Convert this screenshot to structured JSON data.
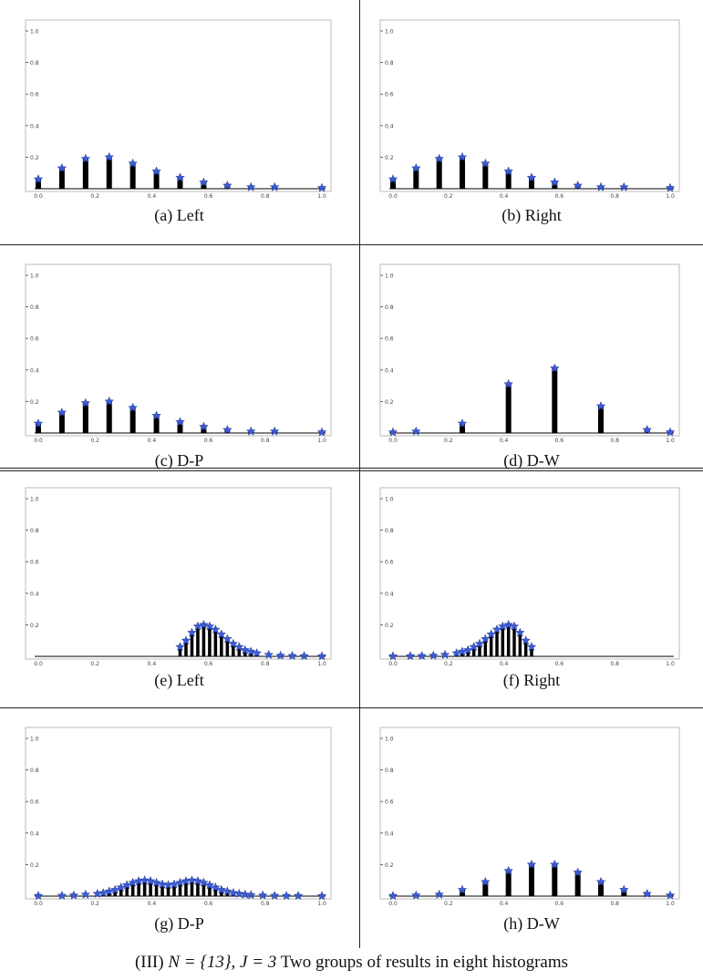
{
  "figure": {
    "caption_prefix": "(III)",
    "caption_math": "N = {13}, J = 3",
    "caption_text": "Two groups of results in eight histograms"
  },
  "style": {
    "bar_color": "#000000",
    "marker_color": "#3a5bd9",
    "frame_color": "#bbbbbb",
    "tick_color": "#444444"
  },
  "chart_data": [
    {
      "type": "bar",
      "caption": "(a) Left",
      "title": "",
      "xlabel": "",
      "ylabel": "",
      "xlim": [
        0,
        1
      ],
      "ylim": [
        0,
        1
      ],
      "xticks": [
        "0.0",
        "0.2",
        "0.4",
        "0.6",
        "0.8",
        "1.0"
      ],
      "yticks": [
        "0.2",
        "0.4",
        "0.6",
        "0.8",
        "1.0"
      ],
      "x": [
        0,
        0.0833,
        0.1667,
        0.25,
        0.3333,
        0.4167,
        0.5,
        0.5833,
        0.6667,
        0.75,
        0.8333,
        1.0
      ],
      "values": [
        0.06,
        0.13,
        0.19,
        0.2,
        0.16,
        0.11,
        0.07,
        0.04,
        0.02,
        0.01,
        0.01,
        0.005
      ]
    },
    {
      "type": "bar",
      "caption": "(b) Right",
      "title": "",
      "xlabel": "",
      "ylabel": "",
      "xlim": [
        0,
        1
      ],
      "ylim": [
        0,
        1
      ],
      "xticks": [
        "0.0",
        "0.2",
        "0.4",
        "0.6",
        "0.8",
        "1.0"
      ],
      "yticks": [
        "0.2",
        "0.4",
        "0.6",
        "0.8",
        "1.0"
      ],
      "x": [
        0,
        0.0833,
        0.1667,
        0.25,
        0.3333,
        0.4167,
        0.5,
        0.5833,
        0.6667,
        0.75,
        0.8333,
        1.0
      ],
      "values": [
        0.06,
        0.13,
        0.19,
        0.2,
        0.16,
        0.11,
        0.07,
        0.04,
        0.02,
        0.01,
        0.01,
        0.005
      ]
    },
    {
      "type": "bar",
      "caption": "(c) D-P",
      "title": "",
      "xlabel": "",
      "ylabel": "",
      "xlim": [
        0,
        1
      ],
      "ylim": [
        0,
        1
      ],
      "xticks": [
        "0.0",
        "0.2",
        "0.4",
        "0.6",
        "0.8",
        "1.0"
      ],
      "yticks": [
        "0.2",
        "0.4",
        "0.6",
        "0.8",
        "1.0"
      ],
      "x": [
        0,
        0.0833,
        0.1667,
        0.25,
        0.3333,
        0.4167,
        0.5,
        0.5833,
        0.6667,
        0.75,
        0.8333,
        1.0
      ],
      "values": [
        0.06,
        0.13,
        0.19,
        0.2,
        0.16,
        0.11,
        0.07,
        0.04,
        0.02,
        0.01,
        0.01,
        0.005
      ]
    },
    {
      "type": "bar",
      "caption": "(d) D-W",
      "title": "",
      "xlabel": "",
      "ylabel": "",
      "xlim": [
        0,
        1
      ],
      "ylim": [
        0,
        1
      ],
      "xticks": [
        "0.0",
        "0.2",
        "0.4",
        "0.6",
        "0.8",
        "1.0"
      ],
      "yticks": [
        "0.2",
        "0.4",
        "0.6",
        "0.8",
        "1.0"
      ],
      "x": [
        0,
        0.0833,
        0.25,
        0.4167,
        0.5833,
        0.75,
        0.9167,
        1.0
      ],
      "values": [
        0.005,
        0.01,
        0.06,
        0.31,
        0.41,
        0.17,
        0.02,
        0.005
      ]
    },
    {
      "type": "bar",
      "caption": "(e) Left",
      "title": "",
      "xlabel": "",
      "ylabel": "",
      "xlim": [
        0,
        1
      ],
      "ylim": [
        0,
        1
      ],
      "xticks": [
        "0.0",
        "0.2",
        "0.4",
        "0.6",
        "0.8",
        "1.0"
      ],
      "yticks": [
        "0.2",
        "0.4",
        "0.6",
        "0.8",
        "1.0"
      ],
      "x": [
        0.5,
        0.5208,
        0.5417,
        0.5625,
        0.5833,
        0.6042,
        0.625,
        0.6458,
        0.6667,
        0.6875,
        0.7083,
        0.7292,
        0.75,
        0.7708,
        0.8125,
        0.8542,
        0.8958,
        0.9375,
        1.0
      ],
      "values": [
        0.06,
        0.1,
        0.15,
        0.19,
        0.2,
        0.19,
        0.17,
        0.14,
        0.11,
        0.08,
        0.06,
        0.04,
        0.03,
        0.02,
        0.01,
        0.005,
        0.003,
        0.002,
        0.001
      ]
    },
    {
      "type": "bar",
      "caption": "(f) Right",
      "title": "",
      "xlabel": "",
      "ylabel": "",
      "xlim": [
        0,
        1
      ],
      "ylim": [
        0,
        1
      ],
      "xticks": [
        "0.0",
        "0.2",
        "0.4",
        "0.6",
        "0.8",
        "1.0"
      ],
      "yticks": [
        "0.2",
        "0.4",
        "0.6",
        "0.8",
        "1.0"
      ],
      "x": [
        0.0,
        0.0625,
        0.1042,
        0.1458,
        0.1875,
        0.2292,
        0.25,
        0.2708,
        0.2917,
        0.3125,
        0.3333,
        0.3542,
        0.375,
        0.3958,
        0.4167,
        0.4375,
        0.4583,
        0.4792,
        0.5
      ],
      "values": [
        0.001,
        0.002,
        0.003,
        0.005,
        0.01,
        0.02,
        0.03,
        0.04,
        0.06,
        0.08,
        0.11,
        0.14,
        0.17,
        0.19,
        0.2,
        0.19,
        0.15,
        0.1,
        0.06
      ]
    },
    {
      "type": "bar",
      "caption": "(g) D-P",
      "title": "",
      "xlabel": "",
      "ylabel": "",
      "xlim": [
        0,
        1
      ],
      "ylim": [
        0,
        1
      ],
      "xticks": [
        "0.0",
        "0.2",
        "0.4",
        "0.6",
        "0.8",
        "1.0"
      ],
      "yticks": [
        "0.2",
        "0.4",
        "0.6",
        "0.8",
        "1.0"
      ],
      "x": [
        0.0,
        0.0833,
        0.125,
        0.1667,
        0.2083,
        0.2292,
        0.25,
        0.2708,
        0.2917,
        0.3125,
        0.3333,
        0.3542,
        0.375,
        0.3958,
        0.4167,
        0.4375,
        0.4583,
        0.4792,
        0.5,
        0.5208,
        0.5417,
        0.5625,
        0.5833,
        0.6042,
        0.625,
        0.6458,
        0.6667,
        0.6875,
        0.7083,
        0.7292,
        0.75,
        0.7917,
        0.8333,
        0.875,
        0.9167,
        1.0
      ],
      "values": [
        0.002,
        0.003,
        0.005,
        0.01,
        0.015,
        0.02,
        0.03,
        0.04,
        0.055,
        0.07,
        0.085,
        0.095,
        0.1,
        0.095,
        0.085,
        0.075,
        0.07,
        0.075,
        0.085,
        0.095,
        0.1,
        0.095,
        0.085,
        0.07,
        0.055,
        0.04,
        0.03,
        0.02,
        0.015,
        0.01,
        0.007,
        0.005,
        0.003,
        0.002,
        0.002,
        0.001
      ]
    },
    {
      "type": "bar",
      "caption": "(h) D-W",
      "title": "",
      "xlabel": "",
      "ylabel": "",
      "xlim": [
        0,
        1
      ],
      "ylim": [
        0,
        1
      ],
      "xticks": [
        "0.0",
        "0.2",
        "0.4",
        "0.6",
        "0.8",
        "1.0"
      ],
      "yticks": [
        "0.2",
        "0.4",
        "0.6",
        "0.8",
        "1.0"
      ],
      "x": [
        0.0,
        0.0833,
        0.1667,
        0.25,
        0.3333,
        0.4167,
        0.5,
        0.5833,
        0.6667,
        0.75,
        0.8333,
        0.9167,
        1.0
      ],
      "values": [
        0.002,
        0.005,
        0.01,
        0.04,
        0.09,
        0.16,
        0.2,
        0.2,
        0.15,
        0.09,
        0.04,
        0.015,
        0.005
      ]
    }
  ]
}
